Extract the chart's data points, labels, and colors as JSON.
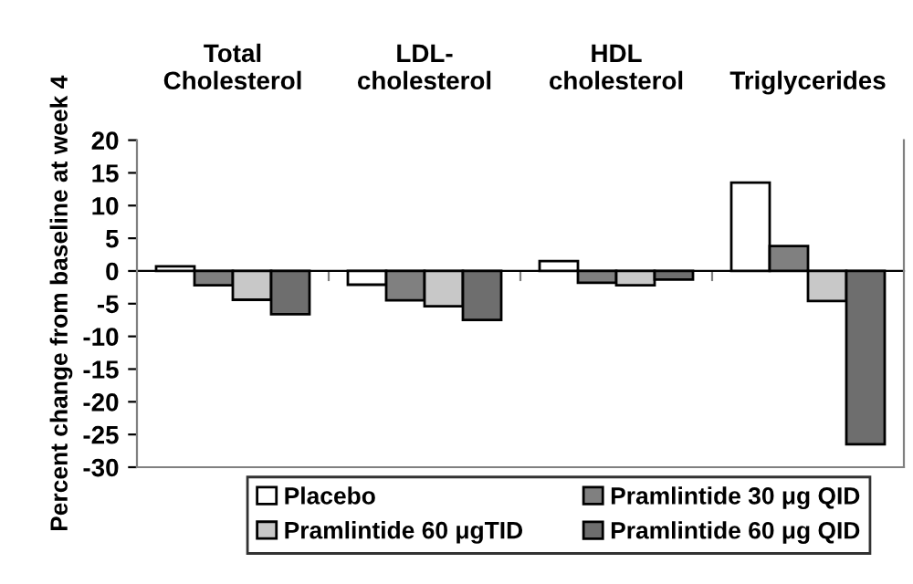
{
  "chart_data": {
    "type": "bar",
    "ylabel": "Percent change from baseline at week 4",
    "categories": [
      "Total\nCholesterol",
      "LDL-\ncholesterol",
      "HDL\ncholesterol",
      "Triglycerides"
    ],
    "series": [
      {
        "name": "Placebo",
        "color": "#ffffff",
        "values": [
          0.7,
          -2.1,
          1.5,
          13.5
        ]
      },
      {
        "name": "Pramlintide 60 μgTID",
        "color": "#c8c8c8",
        "values": [
          -4.4,
          -5.4,
          -2.2,
          -4.6
        ]
      },
      {
        "name": "Pramlintide 30 μg QID",
        "color": "#808080",
        "values": [
          -2.2,
          -4.5,
          -1.8,
          3.8
        ]
      },
      {
        "name": "Pramlintide 60 μg QID",
        "color": "#6e6e6e",
        "values": [
          -6.6,
          -7.5,
          -1.3,
          -26.5
        ]
      }
    ],
    "ylim": [
      -30,
      20
    ],
    "yticks": [
      -30,
      -25,
      -20,
      -15,
      -10,
      -5,
      0,
      5,
      10,
      15,
      20
    ],
    "legend": "bottom"
  }
}
